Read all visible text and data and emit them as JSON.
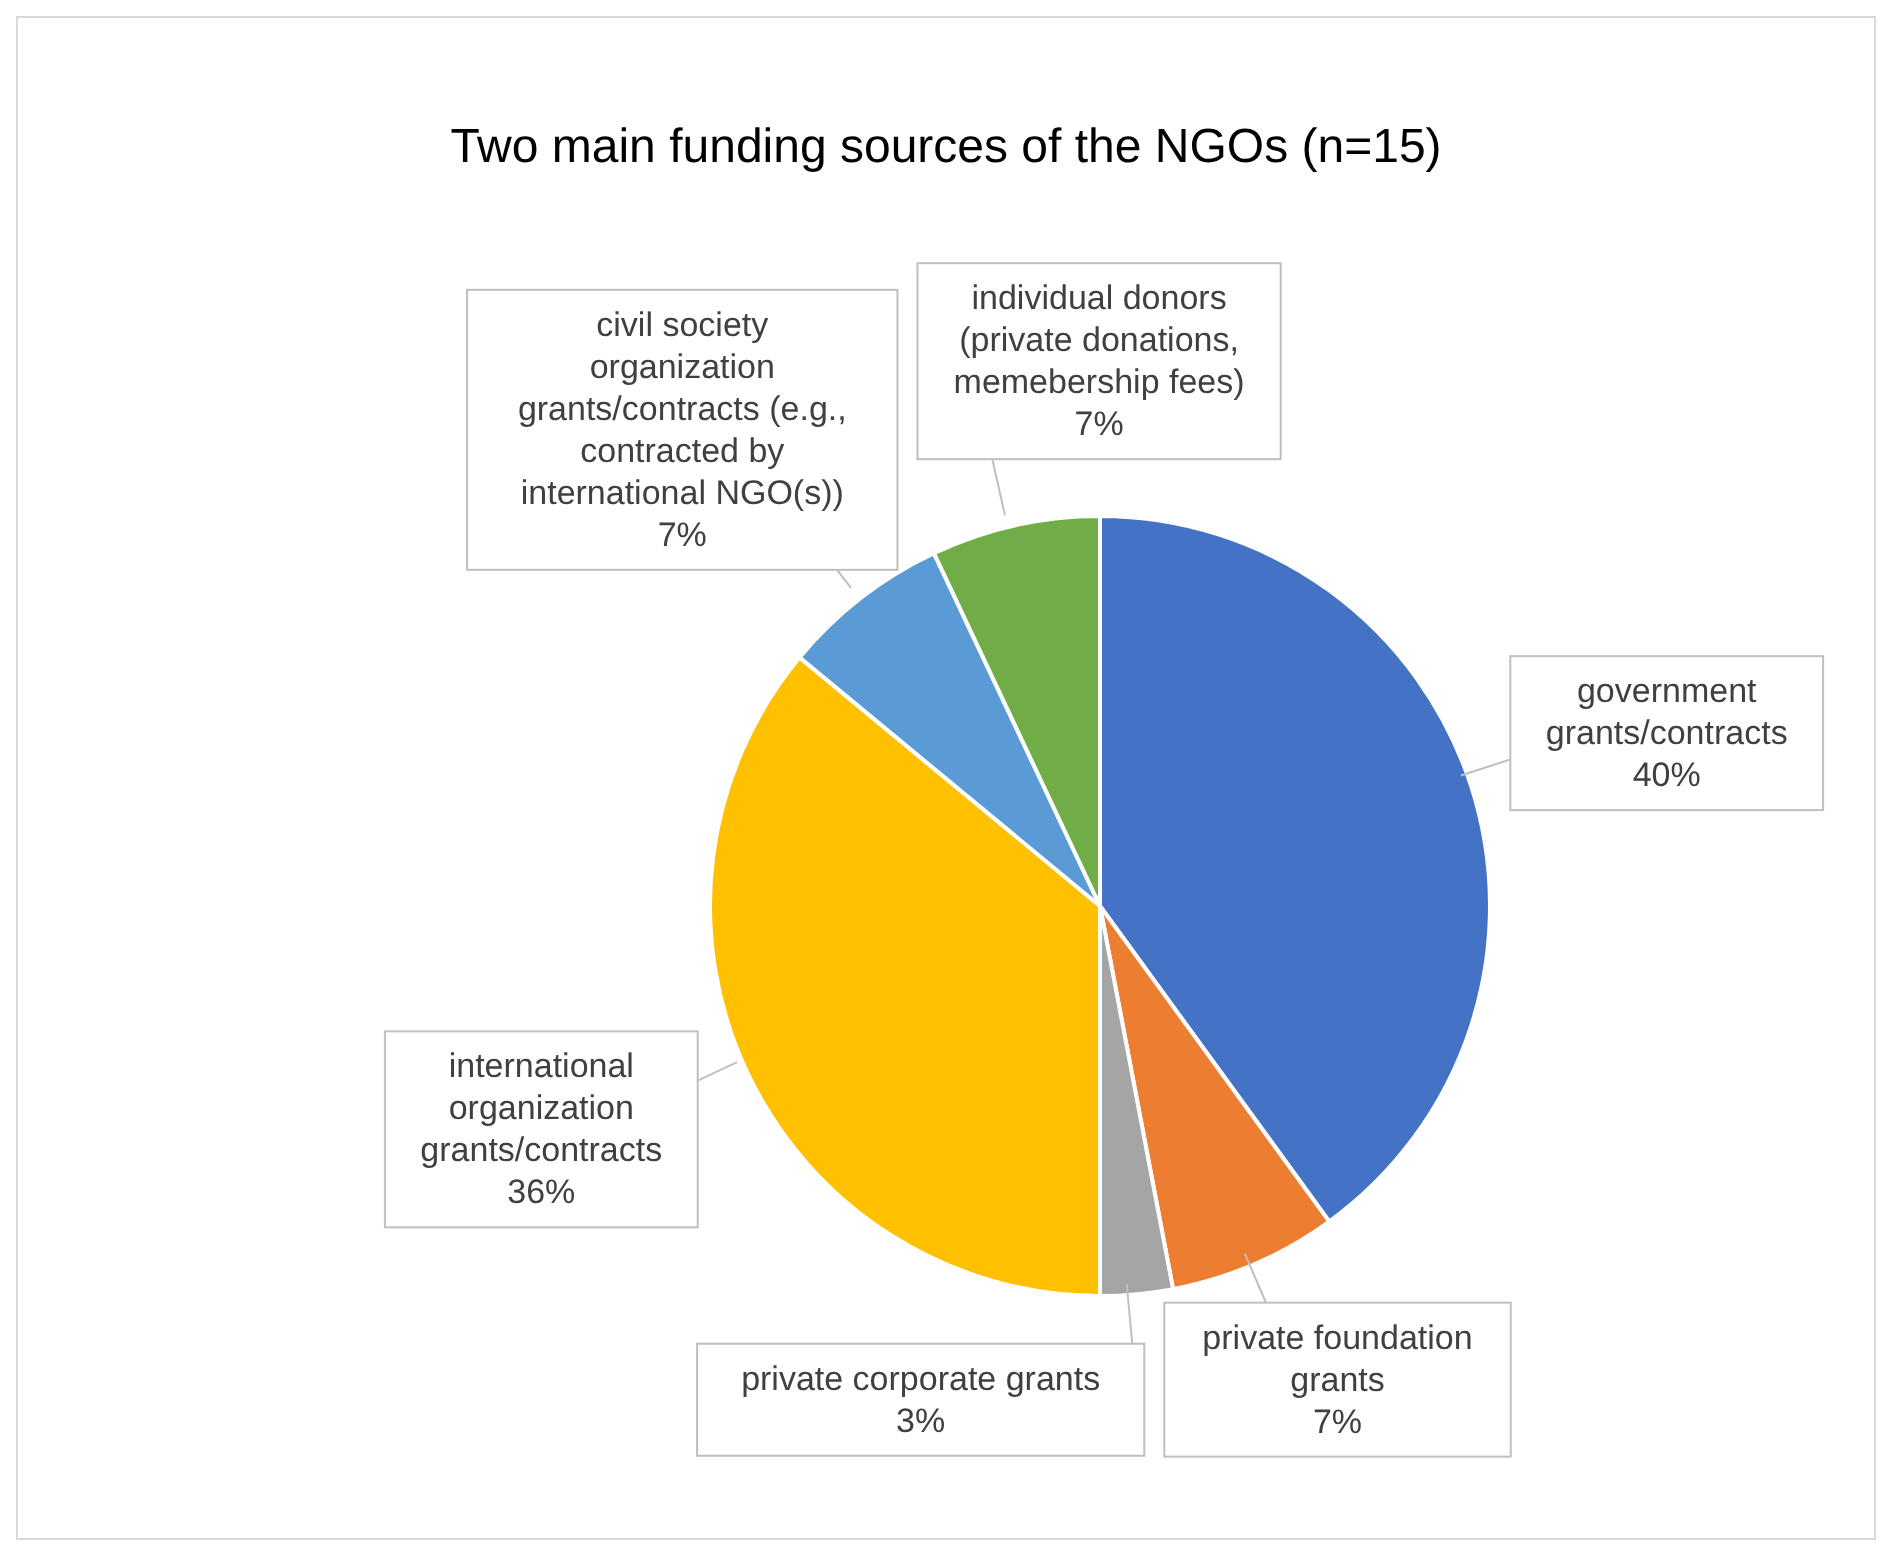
{
  "chart_data": {
    "type": "pie",
    "title": "Two main funding sources of the NGOs (n=15)",
    "categories": [
      "government grants/contracts",
      "private foundation grants",
      "private corporate grants",
      "international organization grants/contracts",
      "civil society organization grants/contracts (e.g., contracted by international NGO(s))",
      "individual donors (private donations, memebership fees)"
    ],
    "values": [
      40,
      7,
      3,
      36,
      7,
      7
    ],
    "value_labels": [
      "40%",
      "7%",
      "3%",
      "36%",
      "7%",
      "7%"
    ],
    "colors": [
      "#4472c4",
      "#ed7d31",
      "#a5a5a5",
      "#ffc000",
      "#5b9bd5",
      "#70ad47"
    ]
  }
}
